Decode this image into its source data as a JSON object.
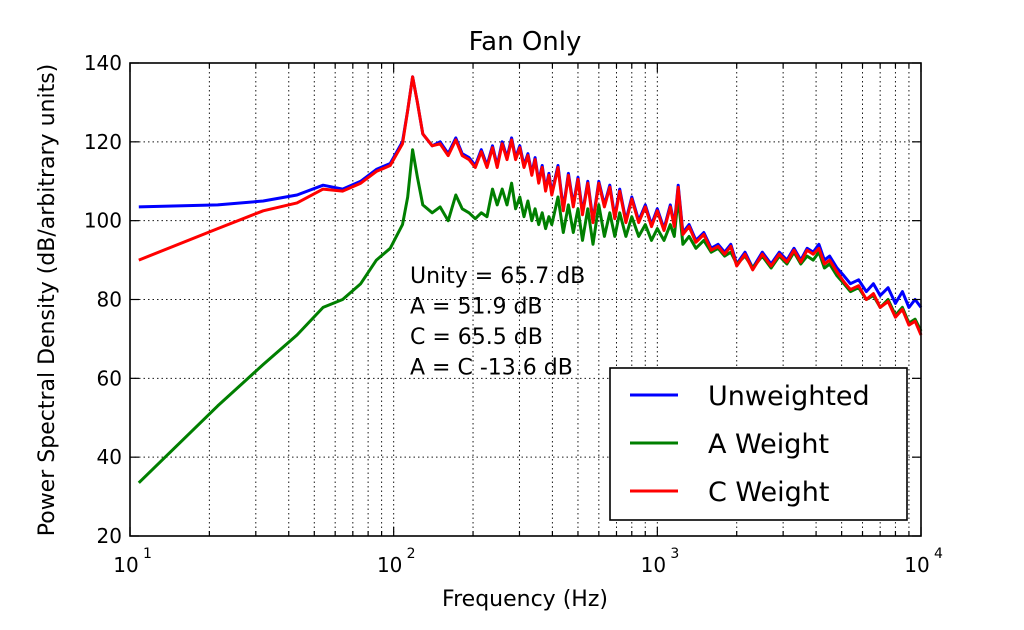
{
  "chart_data": {
    "type": "line",
    "title": "Fan Only",
    "xlabel": "Frequency (Hz)",
    "ylabel": "Power Spectral Density (dB/arbitrary units)",
    "xscale": "log",
    "xlim": [
      10,
      10000
    ],
    "ylim": [
      20,
      140
    ],
    "grid": true,
    "x_ticks": [
      10,
      100,
      1000,
      10000
    ],
    "x_tick_labels": [
      {
        "base": "10",
        "exp": "1"
      },
      {
        "base": "10",
        "exp": "2"
      },
      {
        "base": "10",
        "exp": "3"
      },
      {
        "base": "10",
        "exp": "4"
      }
    ],
    "y_ticks": [
      20,
      40,
      60,
      80,
      100,
      120,
      140
    ],
    "y_tick_labels": [
      "20",
      "40",
      "60",
      "80",
      "100",
      "120",
      "140"
    ],
    "annotations": [
      "Unity = 65.7 dB",
      "A = 51.9 dB",
      "C = 65.5 dB",
      "A = C -13.6 dB"
    ],
    "legend_position": "lower-right",
    "series": [
      {
        "name": "Unweighted",
        "color": "#0000ff",
        "points": [
          [
            10.8,
            103.5
          ],
          [
            21.5,
            104
          ],
          [
            32,
            105
          ],
          [
            43,
            106.5
          ],
          [
            54,
            109
          ],
          [
            64,
            108
          ],
          [
            75,
            110
          ],
          [
            86,
            113
          ],
          [
            97,
            114.5
          ],
          [
            108,
            120
          ],
          [
            113,
            128
          ],
          [
            118,
            136.5
          ],
          [
            123,
            130
          ],
          [
            129,
            122
          ],
          [
            140,
            119
          ],
          [
            150,
            120
          ],
          [
            161,
            117
          ],
          [
            172,
            121
          ],
          [
            182,
            117
          ],
          [
            193,
            116
          ],
          [
            204,
            114
          ],
          [
            215,
            118
          ],
          [
            226,
            114
          ],
          [
            237,
            119
          ],
          [
            247,
            114
          ],
          [
            258,
            120
          ],
          [
            269,
            116
          ],
          [
            280,
            121
          ],
          [
            290,
            116
          ],
          [
            301,
            119
          ],
          [
            312,
            114
          ],
          [
            323,
            117
          ],
          [
            334,
            112
          ],
          [
            344,
            116
          ],
          [
            355,
            110
          ],
          [
            366,
            114
          ],
          [
            377,
            108
          ],
          [
            388,
            112
          ],
          [
            398,
            107
          ],
          [
            420,
            114
          ],
          [
            440,
            103
          ],
          [
            460,
            112
          ],
          [
            480,
            104
          ],
          [
            500,
            111
          ],
          [
            520,
            102
          ],
          [
            545,
            110
          ],
          [
            570,
            100
          ],
          [
            600,
            110
          ],
          [
            630,
            104
          ],
          [
            660,
            109
          ],
          [
            690,
            101
          ],
          [
            720,
            108
          ],
          [
            760,
            100
          ],
          [
            800,
            106
          ],
          [
            850,
            100
          ],
          [
            900,
            104
          ],
          [
            950,
            99
          ],
          [
            1000,
            103
          ],
          [
            1060,
            98
          ],
          [
            1120,
            104
          ],
          [
            1160,
            99
          ],
          [
            1200,
            109
          ],
          [
            1250,
            97
          ],
          [
            1320,
            99
          ],
          [
            1400,
            95
          ],
          [
            1500,
            97
          ],
          [
            1600,
            93
          ],
          [
            1700,
            94
          ],
          [
            1800,
            92
          ],
          [
            1900,
            94
          ],
          [
            2000,
            89
          ],
          [
            2150,
            92
          ],
          [
            2300,
            88
          ],
          [
            2500,
            92
          ],
          [
            2700,
            89
          ],
          [
            2900,
            92
          ],
          [
            3100,
            90
          ],
          [
            3300,
            93
          ],
          [
            3500,
            90
          ],
          [
            3700,
            93
          ],
          [
            3900,
            92
          ],
          [
            4100,
            94
          ],
          [
            4300,
            90
          ],
          [
            4500,
            91
          ],
          [
            4800,
            88
          ],
          [
            5100,
            86
          ],
          [
            5400,
            84
          ],
          [
            5800,
            85
          ],
          [
            6200,
            82
          ],
          [
            6600,
            84
          ],
          [
            7000,
            81
          ],
          [
            7500,
            83
          ],
          [
            8000,
            79
          ],
          [
            8500,
            82
          ],
          [
            9000,
            78
          ],
          [
            9500,
            80
          ],
          [
            10000,
            78
          ]
        ]
      },
      {
        "name": "A Weight",
        "color": "#007f00",
        "points": [
          [
            10.8,
            33.5
          ],
          [
            21.5,
            53
          ],
          [
            32,
            63.5
          ],
          [
            43,
            71
          ],
          [
            54,
            78
          ],
          [
            64,
            80
          ],
          [
            75,
            84
          ],
          [
            86,
            90
          ],
          [
            97,
            93
          ],
          [
            108,
            99
          ],
          [
            113,
            106
          ],
          [
            118,
            118
          ],
          [
            123,
            111
          ],
          [
            129,
            104
          ],
          [
            140,
            102
          ],
          [
            150,
            103.5
          ],
          [
            161,
            100
          ],
          [
            172,
            106.5
          ],
          [
            182,
            103
          ],
          [
            193,
            102
          ],
          [
            204,
            100.5
          ],
          [
            215,
            102
          ],
          [
            226,
            101
          ],
          [
            237,
            108
          ],
          [
            247,
            104
          ],
          [
            258,
            108
          ],
          [
            269,
            104
          ],
          [
            280,
            109.5
          ],
          [
            290,
            103
          ],
          [
            301,
            106
          ],
          [
            312,
            101
          ],
          [
            323,
            105
          ],
          [
            334,
            100
          ],
          [
            344,
            103
          ],
          [
            355,
            99
          ],
          [
            366,
            102
          ],
          [
            377,
            98
          ],
          [
            388,
            101
          ],
          [
            398,
            99
          ],
          [
            420,
            106
          ],
          [
            440,
            97
          ],
          [
            460,
            104
          ],
          [
            480,
            97
          ],
          [
            500,
            103
          ],
          [
            520,
            95
          ],
          [
            545,
            103
          ],
          [
            570,
            94
          ],
          [
            600,
            104
          ],
          [
            630,
            96
          ],
          [
            660,
            102
          ],
          [
            690,
            96
          ],
          [
            720,
            102
          ],
          [
            760,
            96
          ],
          [
            800,
            101
          ],
          [
            850,
            96
          ],
          [
            900,
            99
          ],
          [
            950,
            95
          ],
          [
            1000,
            98
          ],
          [
            1060,
            95
          ],
          [
            1120,
            99
          ],
          [
            1160,
            96
          ],
          [
            1200,
            106
          ],
          [
            1250,
            94
          ],
          [
            1320,
            96
          ],
          [
            1400,
            93
          ],
          [
            1500,
            95
          ],
          [
            1600,
            92
          ],
          [
            1700,
            93
          ],
          [
            1800,
            91
          ],
          [
            1900,
            92
          ],
          [
            2000,
            89
          ],
          [
            2150,
            91
          ],
          [
            2300,
            88
          ],
          [
            2500,
            91
          ],
          [
            2700,
            88
          ],
          [
            2900,
            91
          ],
          [
            3100,
            89
          ],
          [
            3300,
            92
          ],
          [
            3500,
            89
          ],
          [
            3700,
            91
          ],
          [
            3900,
            90
          ],
          [
            4100,
            92
          ],
          [
            4300,
            88
          ],
          [
            4500,
            89
          ],
          [
            4800,
            86
          ],
          [
            5100,
            84
          ],
          [
            5400,
            82
          ],
          [
            5800,
            83
          ],
          [
            6200,
            80
          ],
          [
            6600,
            81
          ],
          [
            7000,
            78
          ],
          [
            7500,
            80
          ],
          [
            8000,
            76
          ],
          [
            8500,
            78
          ],
          [
            9000,
            74
          ],
          [
            9500,
            75
          ],
          [
            10000,
            72
          ]
        ]
      },
      {
        "name": "C Weight",
        "color": "#ff0000",
        "points": [
          [
            10.8,
            90
          ],
          [
            21.5,
            98
          ],
          [
            32,
            102.5
          ],
          [
            43,
            104.5
          ],
          [
            54,
            108
          ],
          [
            64,
            107.5
          ],
          [
            75,
            109.5
          ],
          [
            86,
            112.5
          ],
          [
            97,
            114
          ],
          [
            108,
            119.5
          ],
          [
            113,
            128
          ],
          [
            118,
            136.5
          ],
          [
            123,
            130
          ],
          [
            129,
            122
          ],
          [
            140,
            119
          ],
          [
            150,
            119.5
          ],
          [
            161,
            116.5
          ],
          [
            172,
            120.5
          ],
          [
            182,
            116.5
          ],
          [
            193,
            115.5
          ],
          [
            204,
            113.5
          ],
          [
            215,
            117.5
          ],
          [
            226,
            113.5
          ],
          [
            237,
            118.5
          ],
          [
            247,
            113.5
          ],
          [
            258,
            119.5
          ],
          [
            269,
            115.5
          ],
          [
            280,
            120.5
          ],
          [
            290,
            115.5
          ],
          [
            301,
            118.5
          ],
          [
            312,
            113.5
          ],
          [
            323,
            116.5
          ],
          [
            334,
            111.5
          ],
          [
            344,
            115.5
          ],
          [
            355,
            109.5
          ],
          [
            366,
            113.5
          ],
          [
            377,
            107.5
          ],
          [
            388,
            111.5
          ],
          [
            398,
            106.5
          ],
          [
            420,
            113.5
          ],
          [
            440,
            102.5
          ],
          [
            460,
            111.5
          ],
          [
            480,
            103.5
          ],
          [
            500,
            110.5
          ],
          [
            520,
            101.5
          ],
          [
            545,
            109.5
          ],
          [
            570,
            99.5
          ],
          [
            600,
            109.5
          ],
          [
            630,
            103.5
          ],
          [
            660,
            108.5
          ],
          [
            690,
            100.5
          ],
          [
            720,
            107.5
          ],
          [
            760,
            99.5
          ],
          [
            800,
            105.5
          ],
          [
            850,
            99.5
          ],
          [
            900,
            103.5
          ],
          [
            950,
            98.5
          ],
          [
            1000,
            102.5
          ],
          [
            1060,
            97.5
          ],
          [
            1120,
            103.5
          ],
          [
            1160,
            98.5
          ],
          [
            1200,
            108.5
          ],
          [
            1250,
            96.5
          ],
          [
            1320,
            98.5
          ],
          [
            1400,
            94.5
          ],
          [
            1500,
            96.5
          ],
          [
            1600,
            92.5
          ],
          [
            1700,
            93.5
          ],
          [
            1800,
            91.5
          ],
          [
            1900,
            93.5
          ],
          [
            2000,
            88.5
          ],
          [
            2150,
            91.5
          ],
          [
            2300,
            87.5
          ],
          [
            2500,
            91.5
          ],
          [
            2700,
            88.5
          ],
          [
            2900,
            91.5
          ],
          [
            3100,
            89.5
          ],
          [
            3300,
            92.5
          ],
          [
            3500,
            89.5
          ],
          [
            3700,
            92.5
          ],
          [
            3900,
            91.5
          ],
          [
            4100,
            93
          ],
          [
            4300,
            89
          ],
          [
            4500,
            90
          ],
          [
            4800,
            87
          ],
          [
            5100,
            84.5
          ],
          [
            5400,
            82.5
          ],
          [
            5800,
            83.5
          ],
          [
            6200,
            80
          ],
          [
            6600,
            81.5
          ],
          [
            7000,
            78
          ],
          [
            7500,
            79.5
          ],
          [
            8000,
            75.5
          ],
          [
            8500,
            77.5
          ],
          [
            9000,
            73.5
          ],
          [
            9500,
            74.5
          ],
          [
            10000,
            71
          ]
        ]
      }
    ]
  }
}
